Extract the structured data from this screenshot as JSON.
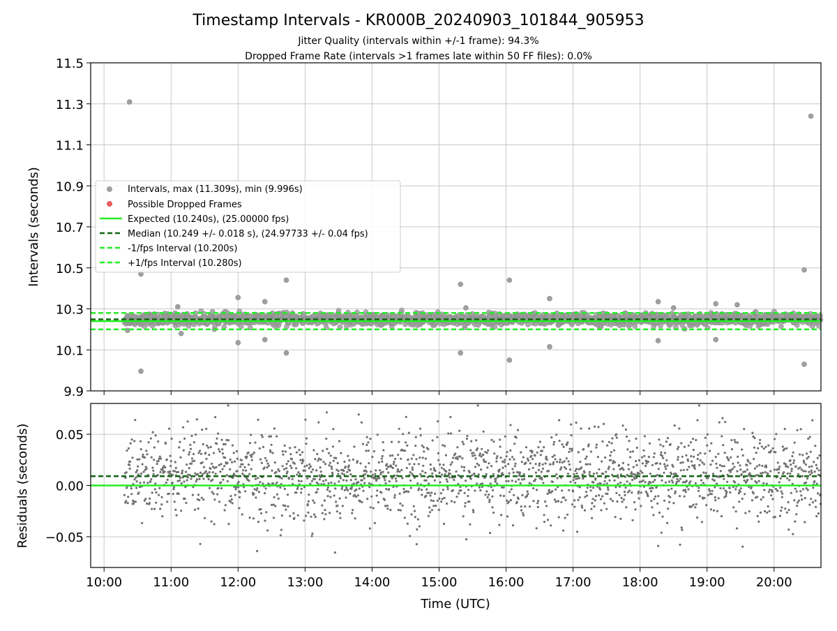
{
  "chart_data": [
    {
      "id": "intervals",
      "type": "scatter",
      "title": "Timestamp Intervals - KR000B_20240903_101844_905953",
      "subtitle_line1": "Jitter Quality (intervals within +/-1 frame): 94.3%",
      "subtitle_line2": "Dropped Frame Rate (intervals >1 frames late within 50 FF files): 0.0%",
      "ylabel": "Intervals (seconds)",
      "xlabel": "",
      "xlim_hours": [
        9.8,
        20.7
      ],
      "ylim": [
        9.9,
        11.5
      ],
      "yticks": [
        9.9,
        10.1,
        10.3,
        10.5,
        10.7,
        10.9,
        11.1,
        11.3,
        11.5
      ],
      "ytick_labels": [
        "9.9",
        "10.1",
        "10.3",
        "10.5",
        "10.7",
        "10.9",
        "11.1",
        "11.3",
        "11.5"
      ],
      "grid": true,
      "expected": 10.24,
      "median": 10.249,
      "minus_fps": 10.2,
      "plus_fps": 10.28,
      "scatter_range_hours": [
        10.3,
        20.7
      ],
      "scatter_band": [
        10.2,
        10.3
      ],
      "outliers": [
        {
          "x": 10.38,
          "y": 11.309
        },
        {
          "x": 20.55,
          "y": 11.24
        },
        {
          "x": 10.55,
          "y": 10.47
        },
        {
          "x": 10.55,
          "y": 9.996
        },
        {
          "x": 12.0,
          "y": 10.355
        },
        {
          "x": 12.0,
          "y": 10.135
        },
        {
          "x": 12.4,
          "y": 10.335
        },
        {
          "x": 12.4,
          "y": 10.15
        },
        {
          "x": 12.72,
          "y": 10.44
        },
        {
          "x": 12.72,
          "y": 10.085
        },
        {
          "x": 11.15,
          "y": 10.18
        },
        {
          "x": 11.1,
          "y": 10.31
        },
        {
          "x": 15.32,
          "y": 10.42
        },
        {
          "x": 15.32,
          "y": 10.085
        },
        {
          "x": 15.4,
          "y": 10.305
        },
        {
          "x": 16.05,
          "y": 10.44
        },
        {
          "x": 16.05,
          "y": 10.05
        },
        {
          "x": 16.65,
          "y": 10.35
        },
        {
          "x": 16.65,
          "y": 10.115
        },
        {
          "x": 18.27,
          "y": 10.335
        },
        {
          "x": 18.27,
          "y": 10.145
        },
        {
          "x": 18.5,
          "y": 10.305
        },
        {
          "x": 19.13,
          "y": 10.325
        },
        {
          "x": 19.13,
          "y": 10.15
        },
        {
          "x": 19.45,
          "y": 10.32
        },
        {
          "x": 20.45,
          "y": 10.49
        },
        {
          "x": 20.45,
          "y": 10.03
        },
        {
          "x": 10.35,
          "y": 10.195
        }
      ],
      "legend": [
        {
          "label": "Intervals, max (11.309s), min (9.996s)",
          "kind": "marker",
          "color": "#a0a0a0"
        },
        {
          "label": "Possible Dropped Frames",
          "kind": "marker",
          "color": "#f06060"
        },
        {
          "label": "Expected (10.240s), (25.00000 fps)",
          "kind": "solid",
          "color": "#22ee22"
        },
        {
          "label": "Median (10.249 +/- 0.018 s), (24.97733 +/- 0.04 fps)",
          "kind": "dashed",
          "color": "#116611"
        },
        {
          "label": "-1/fps Interval (10.200s)",
          "kind": "dashed",
          "color": "#22ee22"
        },
        {
          "label": "+1/fps Interval (10.280s)",
          "kind": "dashed",
          "color": "#22ee22"
        }
      ],
      "legend_placement": "center-left"
    },
    {
      "id": "residuals",
      "type": "scatter",
      "ylabel": "Residuals (seconds)",
      "xlabel": "Time (UTC)",
      "xlim_hours": [
        9.8,
        20.7
      ],
      "ylim": [
        -0.08,
        0.08
      ],
      "yticks": [
        -0.05,
        0.0,
        0.05
      ],
      "ytick_labels": [
        "−0.05",
        "0.00",
        "0.05"
      ],
      "xticks_hours": [
        10,
        11,
        12,
        13,
        14,
        15,
        16,
        17,
        18,
        19,
        20
      ],
      "xtick_labels": [
        "10:00",
        "11:00",
        "12:00",
        "13:00",
        "14:00",
        "15:00",
        "16:00",
        "17:00",
        "18:00",
        "19:00",
        "20:00"
      ],
      "grid": true,
      "zero_line": 0.0,
      "median_residual": 0.009,
      "scatter_range_hours": [
        10.3,
        20.7
      ],
      "scatter_spread": 0.022
    }
  ],
  "colors": {
    "scatter_points": "#a0a0a0",
    "residual_points": "#707070",
    "expected_line": "#22ee22",
    "median_line": "#116611",
    "grid": "#c8c8c8"
  }
}
